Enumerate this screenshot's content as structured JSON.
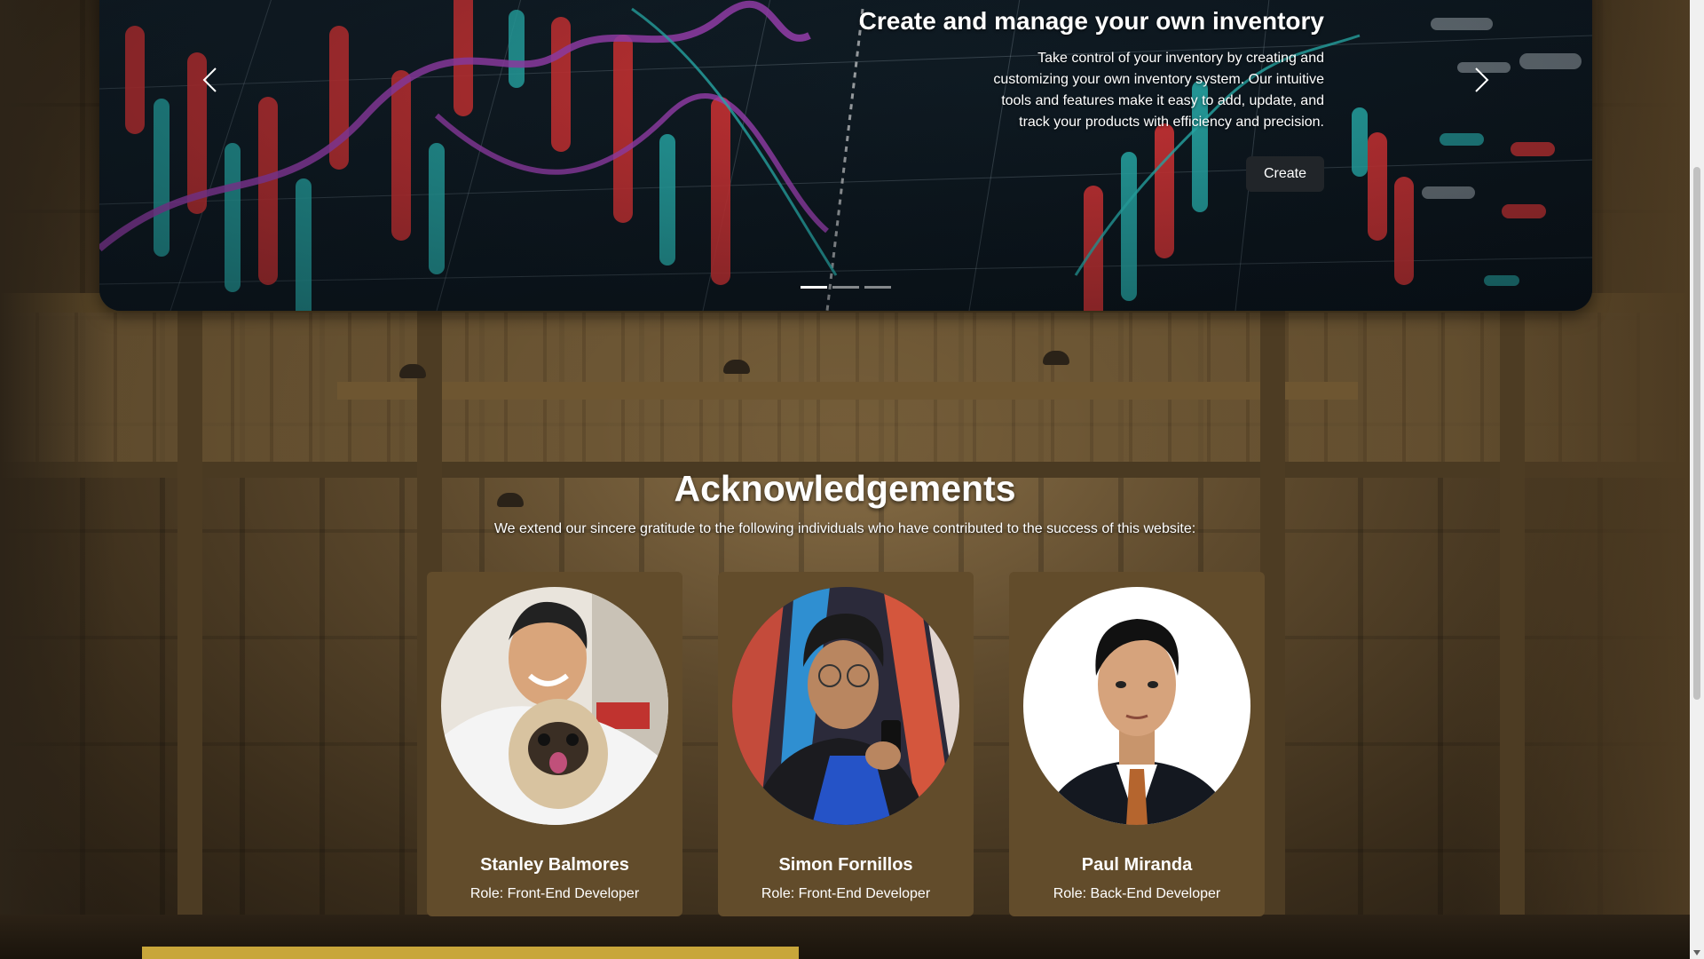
{
  "carousel": {
    "title": "Create and manage your own inventory",
    "description": "Take control of your inventory by creating and customizing your own inventory system. Our intuitive tools and features make it easy to add, update, and track your products with efficiency and precision.",
    "button_label": "Create",
    "indicator_count": 3,
    "active_indicator": 0
  },
  "acknowledgements": {
    "title": "Acknowledgements",
    "subtitle": "We extend our sincere gratitude to the following individuals who have contributed to the success of this website:",
    "people": [
      {
        "name": "Stanley Balmores",
        "role": "Role: Front-End Developer"
      },
      {
        "name": "Simon Fornillos",
        "role": "Role: Front-End Developer"
      },
      {
        "name": "Paul Miranda",
        "role": "Role: Back-End Developer"
      }
    ]
  },
  "colors": {
    "card_bg": "#624c2b",
    "button_bg": "#212529",
    "chart_red": "#ff3b3b",
    "chart_cyan": "#2fd4d0",
    "chart_magenta": "#c04bd8"
  }
}
